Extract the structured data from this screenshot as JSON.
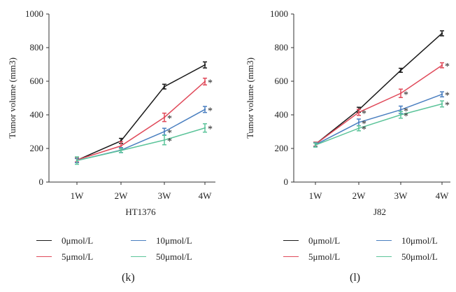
{
  "chart_data": [
    {
      "type": "line",
      "panel_label": "(k)",
      "xlabel": "HT1376",
      "ylabel": "Tumor volume (mm3)",
      "categories": [
        "1W",
        "2W",
        "3W",
        "4W"
      ],
      "ylim": [
        0,
        1000
      ],
      "yticks": [
        0,
        200,
        400,
        600,
        800,
        1000
      ],
      "series": [
        {
          "name": "0μmol/L",
          "color": "#1a1a1a",
          "values": [
            130,
            245,
            568,
            697
          ],
          "errors": [
            12,
            15,
            14,
            18
          ],
          "significant": [
            false,
            false,
            false,
            false
          ]
        },
        {
          "name": "5μmol/L",
          "color": "#e04a5a",
          "values": [
            132,
            215,
            385,
            598
          ],
          "errors": [
            12,
            25,
            25,
            20
          ],
          "significant": [
            false,
            false,
            true,
            true
          ]
        },
        {
          "name": "10μmol/L",
          "color": "#4a7fc0",
          "values": [
            128,
            190,
            300,
            432
          ],
          "errors": [
            12,
            15,
            20,
            18
          ],
          "significant": [
            false,
            false,
            true,
            true
          ]
        },
        {
          "name": "50μmol/L",
          "color": "#5cc49a",
          "values": [
            128,
            188,
            250,
            322
          ],
          "errors": [
            22,
            12,
            28,
            25
          ],
          "significant": [
            false,
            false,
            true,
            true
          ]
        }
      ],
      "legend": [
        "0μmol/L",
        "10μmol/L",
        "5μmol/L",
        "50μmol/L"
      ],
      "significance_marker": "*",
      "grid": false
    },
    {
      "type": "line",
      "panel_label": "(l)",
      "xlabel": "J82",
      "ylabel": "Tumor volume (mm3)",
      "categories": [
        "1W",
        "2W",
        "3W",
        "4W"
      ],
      "ylim": [
        0,
        1000
      ],
      "yticks": [
        0,
        200,
        400,
        600,
        800,
        1000
      ],
      "series": [
        {
          "name": "0μmol/L",
          "color": "#1a1a1a",
          "values": [
            225,
            430,
            665,
            885
          ],
          "errors": [
            12,
            15,
            12,
            15
          ],
          "significant": [
            false,
            false,
            false,
            false
          ]
        },
        {
          "name": "5μmol/L",
          "color": "#e04a5a",
          "values": [
            225,
            415,
            528,
            695
          ],
          "errors": [
            12,
            18,
            25,
            15
          ],
          "significant": [
            false,
            true,
            true,
            true
          ]
        },
        {
          "name": "10μmol/L",
          "color": "#4a7fc0",
          "values": [
            222,
            355,
            430,
            522
          ],
          "errors": [
            12,
            20,
            22,
            15
          ],
          "significant": [
            false,
            true,
            true,
            true
          ]
        },
        {
          "name": "50μmol/L",
          "color": "#5cc49a",
          "values": [
            220,
            320,
            400,
            465
          ],
          "errors": [
            12,
            15,
            20,
            18
          ],
          "significant": [
            false,
            true,
            true,
            true
          ]
        }
      ],
      "legend": [
        "0μmol/L",
        "10μmol/L",
        "5μmol/L",
        "50μmol/L"
      ],
      "significance_marker": "*",
      "grid": false
    }
  ]
}
